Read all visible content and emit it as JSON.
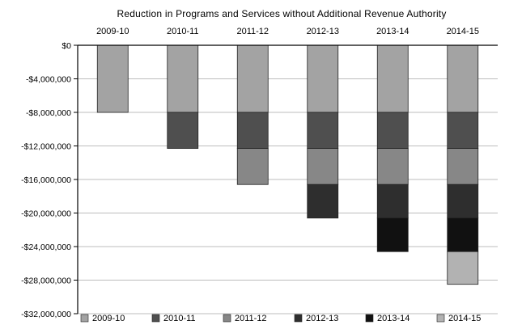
{
  "chart_data": {
    "type": "bar",
    "stacked": true,
    "title": "Reduction in Programs and Services without Additional Revenue Authority",
    "xlabel": "",
    "ylabel": "",
    "categories": [
      "2009-10",
      "2010-11",
      "2011-12",
      "2012-13",
      "2013-14",
      "2014-15"
    ],
    "category_axis_position": "top",
    "ylim": [
      -32000000,
      0
    ],
    "yticks": [
      0,
      -4000000,
      -8000000,
      -12000000,
      -16000000,
      -20000000,
      -24000000,
      -28000000,
      -32000000
    ],
    "ytick_labels": [
      "$0",
      "-$4,000,000",
      "-$8,000,000",
      "-$12,000,000",
      "-$16,000,000",
      "-$20,000,000",
      "-$24,000,000",
      "-$28,000,000",
      "-$32,000,000"
    ],
    "grid": true,
    "legend_position": "bottom",
    "series": [
      {
        "name": "2009-10",
        "color": "#a3a3a3",
        "values": [
          -8000000,
          -8000000,
          -8000000,
          -8000000,
          -8000000,
          -8000000
        ]
      },
      {
        "name": "2010-11",
        "color": "#4f4f4f",
        "values": [
          0,
          -4300000,
          -4300000,
          -4300000,
          -4300000,
          -4300000
        ]
      },
      {
        "name": "2011-12",
        "color": "#878787",
        "values": [
          0,
          0,
          -4300000,
          -4300000,
          -4300000,
          -4300000
        ]
      },
      {
        "name": "2012-13",
        "color": "#2e2e2e",
        "values": [
          0,
          0,
          0,
          -4000000,
          -4000000,
          -4000000
        ]
      },
      {
        "name": "2013-14",
        "color": "#111111",
        "values": [
          0,
          0,
          0,
          0,
          -4000000,
          -4000000
        ]
      },
      {
        "name": "2014-15",
        "color": "#b2b2b2",
        "values": [
          0,
          0,
          0,
          0,
          0,
          -3900000
        ]
      }
    ]
  }
}
